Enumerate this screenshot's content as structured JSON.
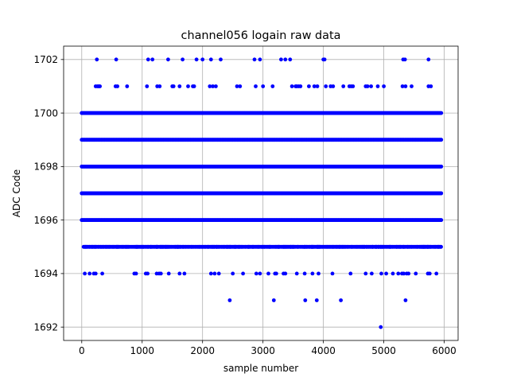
{
  "chart_data": {
    "type": "scatter",
    "title": "channel056 logain raw data",
    "xlabel": "sample number",
    "ylabel": "ADC Code",
    "xlim": [
      -300,
      6230
    ],
    "ylim": [
      1691.5,
      1702.5
    ],
    "xticks": [
      0,
      1000,
      2000,
      3000,
      4000,
      5000,
      6000
    ],
    "yticks": [
      1692,
      1694,
      1696,
      1698,
      1700,
      1702
    ],
    "grid": true,
    "marker_color": "#0000ff",
    "sample_count": 6000,
    "dense_levels": [
      1696,
      1697,
      1698,
      1699,
      1700
    ],
    "level_1695": {
      "x_start": 30,
      "x_end": 5950,
      "mean_gap": 11
    },
    "level_1694": [
      50,
      130,
      200,
      230,
      340,
      870,
      900,
      1060,
      1090,
      1240,
      1280,
      1310,
      1440,
      1620,
      1700,
      2140,
      2200,
      2270,
      2500,
      2670,
      2890,
      2950,
      3090,
      3200,
      3220,
      3340,
      3370,
      3560,
      3690,
      3820,
      3920,
      4150,
      4450,
      4700,
      4800,
      4960,
      5040,
      5150,
      5240,
      5300,
      5330,
      5380,
      5410,
      5530,
      5730,
      5760,
      5870
    ],
    "level_1693": [
      2450,
      3180,
      3700,
      3890,
      4290,
      5360
    ],
    "level_1692": [
      4950
    ],
    "level_1701": [
      230,
      260,
      280,
      300,
      560,
      590,
      750,
      1080,
      1250,
      1290,
      1500,
      1520,
      1620,
      1760,
      1840,
      1860,
      2120,
      2170,
      2220,
      2570,
      2620,
      2880,
      3000,
      3160,
      3480,
      3540,
      3560,
      3590,
      3620,
      3760,
      3850,
      3900,
      4040,
      4120,
      4160,
      4330,
      4430,
      4460,
      4490,
      4700,
      4730,
      4790,
      4900,
      5000,
      5310,
      5360,
      5460,
      5740,
      5780
    ],
    "level_1702": [
      250,
      570,
      1100,
      1170,
      1430,
      1670,
      1900,
      2000,
      2140,
      2300,
      2860,
      2950,
      3300,
      3370,
      3450,
      4000,
      4020,
      5320,
      5350,
      5740
    ]
  }
}
